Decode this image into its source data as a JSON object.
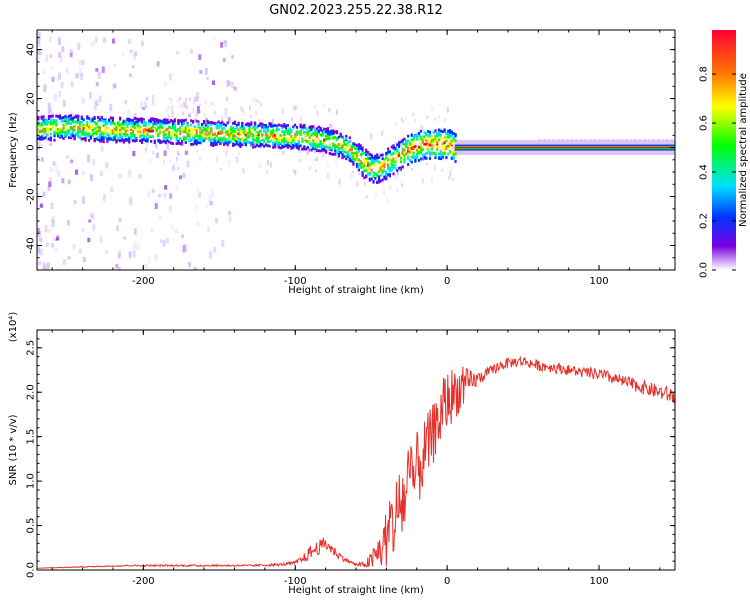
{
  "title": "GN02.2023.255.22.38.R12",
  "chart_data": [
    {
      "type": "heatmap",
      "xlabel": "Height of straight line (km)",
      "ylabel": "Frequency (Hz)",
      "xlim": [
        -270,
        150
      ],
      "ylim": [
        -50,
        48
      ],
      "xticks": [
        -200,
        -100,
        0,
        100
      ],
      "yticks": [
        -40,
        -20,
        0,
        20,
        40
      ],
      "grid": false,
      "colorbar": {
        "label": "Normalized spectral amplitude",
        "range": [
          0,
          1
        ],
        "ticks": [
          "0.0",
          "0.2",
          "0.4",
          "0.6",
          "0.8"
        ],
        "colormap": "rainbow",
        "colors": [
          "#ffffff",
          "#7a00e0",
          "#0033ff",
          "#00e0ff",
          "#00ff00",
          "#ffff00",
          "#ff7700",
          "#ff0033"
        ]
      },
      "ridge": {
        "x": [
          -270,
          -250,
          -230,
          -200,
          -180,
          -160,
          -140,
          -120,
          -100,
          -90,
          -80,
          -75,
          -70,
          -65,
          -60,
          -55,
          -50,
          -45,
          -40,
          -35,
          -30,
          -25,
          -20,
          -15,
          -10,
          -5,
          0,
          3,
          5,
          150
        ],
        "y": [
          8,
          9,
          8,
          7.5,
          7,
          6.5,
          6,
          5.5,
          5,
          4.5,
          3.5,
          2.5,
          1.5,
          0,
          -3,
          -6,
          -8,
          -8,
          -6,
          -4,
          -2,
          0,
          1,
          2,
          2,
          2,
          2,
          1,
          0,
          0
        ]
      }
    },
    {
      "type": "line",
      "xlabel": "Height of straight line (km)",
      "ylabel": "SNR (10 * v/v)",
      "y_multiplier": "(x10⁴)",
      "xlim": [
        -270,
        150
      ],
      "ylim": [
        0,
        2.7
      ],
      "xticks": [
        -200,
        -100,
        0,
        100
      ],
      "yticks": [
        "0.0",
        "0.5",
        "1.0",
        "1.5",
        "2.0",
        "2.5"
      ],
      "color": "#e8302a",
      "grid": false,
      "x": [
        -270,
        -250,
        -230,
        -210,
        -190,
        -170,
        -150,
        -130,
        -110,
        -100,
        -95,
        -90,
        -85,
        -80,
        -75,
        -70,
        -65,
        -60,
        -55,
        -50,
        -45,
        -40,
        -35,
        -30,
        -25,
        -20,
        -15,
        -10,
        -5,
        0,
        5,
        10,
        15,
        20,
        25,
        30,
        35,
        40,
        50,
        60,
        70,
        80,
        90,
        100,
        110,
        120,
        130,
        140,
        150
      ],
      "y": [
        0.02,
        0.03,
        0.04,
        0.05,
        0.05,
        0.05,
        0.05,
        0.05,
        0.06,
        0.08,
        0.12,
        0.2,
        0.25,
        0.3,
        0.22,
        0.15,
        0.1,
        0.06,
        0.06,
        0.1,
        0.2,
        0.35,
        0.55,
        0.75,
        0.9,
        1.1,
        1.3,
        1.5,
        1.7,
        1.9,
        2.0,
        2.05,
        2.1,
        2.15,
        2.2,
        2.25,
        2.3,
        2.33,
        2.35,
        2.3,
        2.28,
        2.25,
        2.22,
        2.2,
        2.15,
        2.1,
        2.05,
        2.0,
        1.95
      ],
      "noise": [
        0.0,
        0.005,
        0.005,
        0.008,
        0.01,
        0.01,
        0.01,
        0.01,
        0.015,
        0.02,
        0.05,
        0.08,
        0.08,
        0.08,
        0.06,
        0.04,
        0.02,
        0.015,
        0.03,
        0.1,
        0.22,
        0.35,
        0.45,
        0.5,
        0.5,
        0.45,
        0.4,
        0.35,
        0.35,
        0.35,
        0.3,
        0.25,
        0.15,
        0.08,
        0.06,
        0.06,
        0.06,
        0.06,
        0.06,
        0.06,
        0.06,
        0.06,
        0.06,
        0.07,
        0.07,
        0.07,
        0.08,
        0.08,
        0.1
      ]
    }
  ]
}
